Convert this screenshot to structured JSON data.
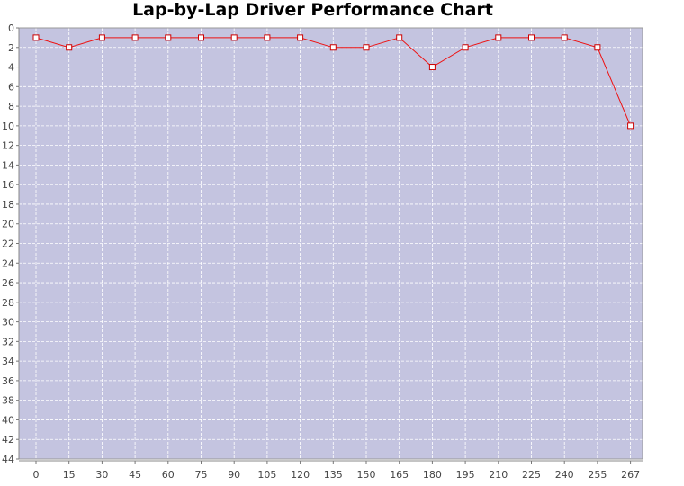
{
  "chart_data": {
    "type": "line",
    "title": "Lap-by-Lap Driver Performance Chart",
    "xlabel": "",
    "ylabel": "",
    "categories": [
      "0",
      "15",
      "30",
      "45",
      "60",
      "75",
      "90",
      "105",
      "120",
      "135",
      "150",
      "165",
      "180",
      "195",
      "210",
      "225",
      "240",
      "255",
      "267"
    ],
    "series": [
      {
        "values": [
          1,
          2,
          1,
          1,
          1,
          1,
          1,
          1,
          1,
          2,
          2,
          1,
          4,
          2,
          1,
          1,
          1,
          2,
          10
        ]
      }
    ],
    "ylim": [
      0,
      44
    ],
    "y_inverted": true,
    "y_ticks": [
      "0",
      "2",
      "4",
      "6",
      "8",
      "10",
      "12",
      "14",
      "16",
      "18",
      "20",
      "22",
      "24",
      "26",
      "28",
      "30",
      "32",
      "34",
      "36",
      "38",
      "40",
      "42",
      "44"
    ],
    "grid": true,
    "legend": "none",
    "colors": {
      "plot_background": "#c4c4e0",
      "gridline": "#ffffff",
      "series_line": "#ee1111",
      "marker_fill": "#ffffff",
      "marker_stroke": "#cc0000"
    }
  }
}
